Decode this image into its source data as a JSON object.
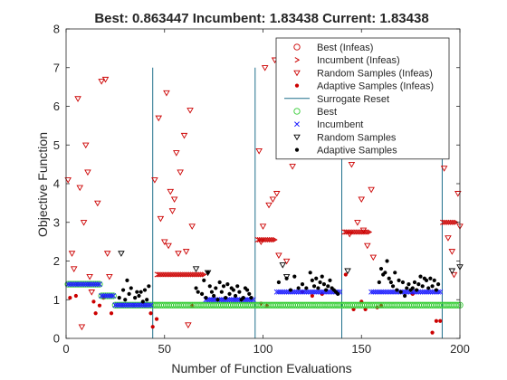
{
  "chart_data": {
    "type": "scatter",
    "title": "Best: 0.863447 Incumbent: 1.83438 Current: 1.83438",
    "xlabel": "Number of Function Evaluations",
    "ylabel": "Objective Function",
    "xlim": [
      0,
      200
    ],
    "ylim": [
      0,
      8
    ],
    "xticks": [
      "0",
      "50",
      "100",
      "150",
      "200"
    ],
    "yticks": [
      "0",
      "1",
      "2",
      "3",
      "4",
      "5",
      "6",
      "7",
      "8"
    ],
    "grid": false,
    "legend_position": "top-right",
    "legend": [
      {
        "label": "Best (Infeas)",
        "marker": "circle-open",
        "color": "#cc0000"
      },
      {
        "label": "Incumbent (Infeas)",
        "marker": "chevron",
        "color": "#cc0000"
      },
      {
        "label": "Random Samples (Infeas)",
        "marker": "triangle-down-open",
        "color": "#cc0000"
      },
      {
        "label": "Adaptive Samples (Infeas)",
        "marker": "dot",
        "color": "#cc0000"
      },
      {
        "label": "Surrogate Reset",
        "marker": "line",
        "color": "#1f6f8b"
      },
      {
        "label": "Best",
        "marker": "circle-open",
        "color": "#33cc33"
      },
      {
        "label": "Incumbent",
        "marker": "cross",
        "color": "#1a1aff"
      },
      {
        "label": "Random Samples",
        "marker": "triangle-down-open",
        "color": "#000000"
      },
      {
        "label": "Adaptive Samples",
        "marker": "dot",
        "color": "#000000"
      }
    ],
    "colors": {
      "infeasible": "#cc0000",
      "best": "#33cc33",
      "incumbent": "#1a1aff",
      "feasible": "#000000",
      "reset": "#1f6f8b"
    },
    "surrogate_resets": [
      44,
      96,
      140,
      191
    ],
    "series": [
      {
        "name": "Random Samples (Infeas)",
        "points": [
          [
            1,
            4.1
          ],
          [
            3,
            2.2
          ],
          [
            4,
            1.8
          ],
          [
            6,
            6.2
          ],
          [
            7,
            3.9
          ],
          [
            8,
            0.3
          ],
          [
            9,
            3.0
          ],
          [
            10,
            5.0
          ],
          [
            11,
            4.3
          ],
          [
            12,
            1.6
          ],
          [
            13,
            1.2
          ],
          [
            16,
            3.5
          ],
          [
            18,
            6.65
          ],
          [
            20,
            6.7
          ],
          [
            21,
            2.2
          ],
          [
            22,
            1.6
          ],
          [
            45,
            4.1
          ],
          [
            47,
            5.7
          ],
          [
            48,
            3.1
          ],
          [
            50,
            2.5
          ],
          [
            51,
            6.35
          ],
          [
            52,
            2.4
          ],
          [
            53,
            3.8
          ],
          [
            54,
            3.3
          ],
          [
            55,
            3.6
          ],
          [
            56,
            4.8
          ],
          [
            57,
            2.2
          ],
          [
            58,
            4.3
          ],
          [
            60,
            5.25
          ],
          [
            61,
            2.25
          ],
          [
            62,
            0.35
          ],
          [
            63,
            5.9
          ],
          [
            64,
            2.9
          ],
          [
            98,
            4.85
          ],
          [
            99,
            2.5
          ],
          [
            100,
            2.9
          ],
          [
            101,
            7.0
          ],
          [
            103,
            3.45
          ],
          [
            105,
            3.6
          ],
          [
            106,
            7.2
          ],
          [
            107,
            3.75
          ],
          [
            108,
            2.15
          ],
          [
            112,
            2.0
          ],
          [
            115,
            4.45
          ],
          [
            141,
            4.75
          ],
          [
            144,
            2.7
          ],
          [
            145,
            4.5
          ],
          [
            148,
            3.0
          ],
          [
            150,
            3.6
          ],
          [
            151,
            2.8
          ],
          [
            153,
            2.4
          ],
          [
            155,
            3.85
          ],
          [
            156,
            2.1
          ],
          [
            192,
            4.4
          ],
          [
            194,
            2.6
          ],
          [
            196,
            2.25
          ],
          [
            197,
            1.65
          ],
          [
            199,
            3.75
          ],
          [
            200,
            2.9
          ]
        ]
      },
      {
        "name": "Adaptive Samples (Infeas)",
        "points": [
          [
            2,
            1.05
          ],
          [
            5,
            1.1
          ],
          [
            14,
            0.95
          ],
          [
            15,
            0.65
          ],
          [
            17,
            0.85
          ],
          [
            19,
            1.05
          ],
          [
            23,
            0.65
          ],
          [
            43,
            0.65
          ],
          [
            44,
            0.3
          ],
          [
            46,
            0.5
          ],
          [
            64,
            0.85
          ],
          [
            99,
            0.9
          ],
          [
            102,
            0.85
          ],
          [
            120,
            1.2
          ],
          [
            125,
            1.1
          ],
          [
            130,
            1.15
          ],
          [
            142,
            1.65
          ],
          [
            146,
            0.75
          ],
          [
            150,
            0.95
          ],
          [
            152,
            0.75
          ],
          [
            158,
            0.8
          ],
          [
            160,
            0.85
          ],
          [
            176,
            1.15
          ],
          [
            186,
            0.15
          ],
          [
            188,
            0.45
          ],
          [
            190,
            0.45
          ]
        ]
      },
      {
        "name": "Incumbent (Infeas)",
        "runs": [
          {
            "y": 1.65,
            "x0": 46,
            "x1": 70,
            "step": 1
          },
          {
            "y": 2.55,
            "x0": 97,
            "x1": 106,
            "step": 1
          },
          {
            "y": 2.75,
            "x0": 141,
            "x1": 154,
            "step": 1
          },
          {
            "y": 3.0,
            "x0": 191,
            "x1": 198,
            "step": 1
          }
        ]
      },
      {
        "name": "Best",
        "runs": [
          {
            "y": 1.4,
            "x0": 1,
            "x1": 17,
            "step": 1
          },
          {
            "y": 1.1,
            "x0": 18,
            "x1": 24,
            "step": 1
          },
          {
            "y": 0.86,
            "x0": 25,
            "x1": 200,
            "step": 1
          }
        ]
      },
      {
        "name": "Incumbent",
        "runs": [
          {
            "y": 1.4,
            "x0": 1,
            "x1": 17,
            "step": 1
          },
          {
            "y": 1.1,
            "x0": 18,
            "x1": 24,
            "step": 1
          },
          {
            "y": 0.86,
            "x0": 25,
            "x1": 43,
            "step": 1
          },
          {
            "y": 1.0,
            "x0": 71,
            "x1": 95,
            "step": 1
          },
          {
            "y": 1.2,
            "x0": 107,
            "x1": 139,
            "step": 1
          },
          {
            "y": 1.2,
            "x0": 155,
            "x1": 190,
            "step": 1
          }
        ]
      },
      {
        "name": "Adaptive Samples",
        "points": [
          [
            27,
            1.05
          ],
          [
            29,
            1.25
          ],
          [
            30,
            1.0
          ],
          [
            31,
            1.5
          ],
          [
            32,
            1.15
          ],
          [
            33,
            1.3
          ],
          [
            35,
            1.05
          ],
          [
            36,
            1.2
          ],
          [
            37,
            1.1
          ],
          [
            38,
            1.2
          ],
          [
            39,
            0.95
          ],
          [
            40,
            1.25
          ],
          [
            41,
            1.0
          ],
          [
            42,
            1.35
          ],
          [
            66,
            1.3
          ],
          [
            67,
            1.2
          ],
          [
            69,
            1.15
          ],
          [
            70,
            1.5
          ],
          [
            71,
            1.05
          ],
          [
            72,
            1.7
          ],
          [
            73,
            1.35
          ],
          [
            74,
            1.2
          ],
          [
            75,
            1.1
          ],
          [
            76,
            1.3
          ],
          [
            77,
            1.0
          ],
          [
            78,
            1.45
          ],
          [
            79,
            1.2
          ],
          [
            80,
            1.35
          ],
          [
            81,
            1.05
          ],
          [
            82,
            1.4
          ],
          [
            83,
            1.15
          ],
          [
            84,
            1.3
          ],
          [
            85,
            1.25
          ],
          [
            86,
            1.1
          ],
          [
            87,
            1.35
          ],
          [
            88,
            1.2
          ],
          [
            89,
            1.0
          ],
          [
            90,
            1.05
          ],
          [
            91,
            1.3
          ],
          [
            92,
            1.25
          ],
          [
            93,
            1.15
          ],
          [
            94,
            1.05
          ],
          [
            108,
            1.45
          ],
          [
            112,
            1.55
          ],
          [
            114,
            1.25
          ],
          [
            116,
            1.6
          ],
          [
            118,
            1.3
          ],
          [
            120,
            1.4
          ],
          [
            122,
            1.3
          ],
          [
            124,
            1.7
          ],
          [
            125,
            1.5
          ],
          [
            126,
            1.35
          ],
          [
            127,
            1.55
          ],
          [
            128,
            1.3
          ],
          [
            129,
            1.45
          ],
          [
            130,
            1.6
          ],
          [
            131,
            1.4
          ],
          [
            132,
            1.25
          ],
          [
            133,
            1.35
          ],
          [
            134,
            1.5
          ],
          [
            135,
            1.3
          ],
          [
            136,
            1.25
          ],
          [
            137,
            1.2
          ],
          [
            138,
            1.15
          ],
          [
            159,
            1.45
          ],
          [
            160,
            1.8
          ],
          [
            161,
            1.65
          ],
          [
            162,
            1.7
          ],
          [
            163,
            2.0
          ],
          [
            164,
            1.55
          ],
          [
            165,
            1.45
          ],
          [
            166,
            1.35
          ],
          [
            167,
            1.7
          ],
          [
            168,
            1.25
          ],
          [
            169,
            1.5
          ],
          [
            170,
            1.2
          ],
          [
            171,
            1.45
          ],
          [
            172,
            1.1
          ],
          [
            173,
            1.3
          ],
          [
            174,
            1.4
          ],
          [
            175,
            1.25
          ],
          [
            176,
            1.3
          ],
          [
            177,
            1.45
          ],
          [
            178,
            1.25
          ],
          [
            179,
            1.4
          ],
          [
            180,
            1.6
          ],
          [
            181,
            1.35
          ],
          [
            182,
            1.55
          ],
          [
            183,
            1.5
          ],
          [
            184,
            1.3
          ],
          [
            185,
            1.55
          ],
          [
            186,
            1.35
          ],
          [
            187,
            1.5
          ],
          [
            188,
            1.25
          ],
          [
            189,
            1.4
          ]
        ]
      },
      {
        "name": "Random Samples",
        "points": [
          [
            28,
            2.2
          ],
          [
            66,
            1.8
          ],
          [
            72,
            1.7
          ],
          [
            110,
            1.9
          ],
          [
            112,
            1.6
          ],
          [
            143,
            1.75
          ],
          [
            196,
            1.75
          ],
          [
            200,
            1.85
          ]
        ]
      }
    ]
  }
}
